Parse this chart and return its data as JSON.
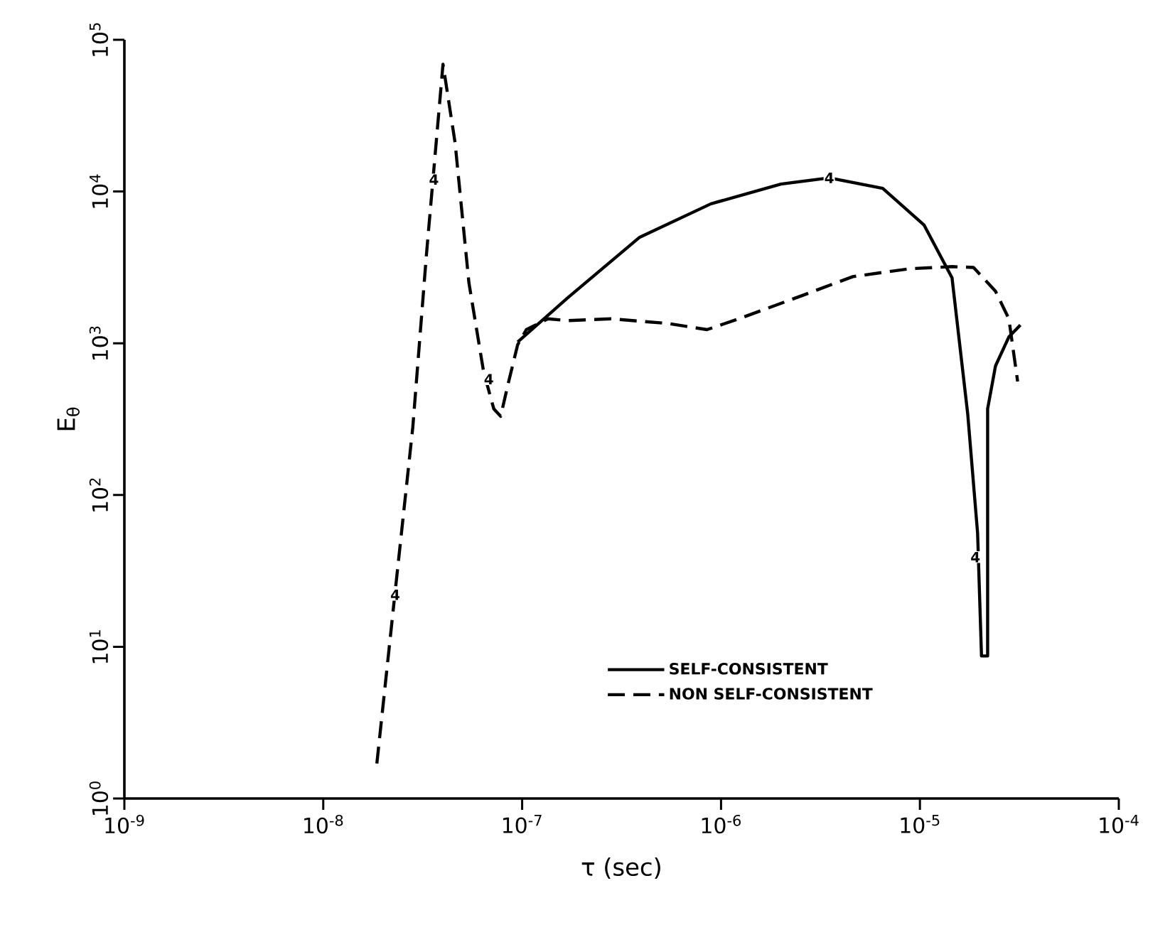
{
  "chart_data": {
    "type": "line",
    "xlabel": "τ (sec)",
    "ylabel": "E$_{θ}$",
    "log": "xy",
    "grid": false,
    "legend": "bottom",
    "marker": "none",
    "xlim": [
      1e-09,
      0.0001
    ],
    "ylim": [
      1,
      100000
    ],
    "xticks": [
      {
        "value": 1e-09,
        "label": "10$^{-9}$"
      },
      {
        "value": 1e-08,
        "label": "10$^{-8}$"
      },
      {
        "value": 1e-07,
        "label": "10$^{-7}$"
      },
      {
        "value": 1e-06,
        "label": "10$^{-6}$"
      },
      {
        "value": 1e-05,
        "label": "10$^{-5}$"
      },
      {
        "value": 0.0001,
        "label": "10$^{-4}$"
      }
    ],
    "yticks": [
      {
        "value": 1,
        "label": "10$^{0}$"
      },
      {
        "value": 10,
        "label": "10$^{1}$"
      },
      {
        "value": 100,
        "label": "10$^{2}$"
      },
      {
        "value": 1000,
        "label": "10$^{3}$"
      },
      {
        "value": 10000,
        "label": "10$^{4}$"
      },
      {
        "value": 100000,
        "label": "10$^{5}$"
      }
    ],
    "series": [
      {
        "name": "SELF-CONSISTENT",
        "color": "#000000",
        "line_style": "solid",
        "x": [
          9.5e-08,
          1.7e-07,
          3.9e-07,
          8.9e-07,
          2e-06,
          3.5e-06,
          6.5e-06,
          1.05e-05,
          1.45e-05,
          1.74e-05,
          1.95e-05,
          2.04e-05,
          2.19e-05,
          2.19e-05,
          2.4e-05,
          2.8e-05,
          3.2e-05
        ],
        "values": [
          1020,
          2000,
          5000,
          8300,
          11200,
          12300,
          10500,
          6000,
          2700,
          340,
          56,
          8.7,
          8.7,
          370,
          710,
          1100,
          1320
        ]
      },
      {
        "name": "NON SELF-CONSISTENT",
        "color": "#000000",
        "line_style": "dashed",
        "x": [
          1.86e-08,
          2.29e-08,
          2.82e-08,
          3.3e-08,
          4e-08,
          4.6e-08,
          5.4e-08,
          6.4e-08,
          7.2e-08,
          7.8e-08,
          8.5e-08,
          9.5e-08,
          1.05e-07,
          1.35e-07,
          1.7e-07,
          2.8e-07,
          5.4e-07,
          8.5e-07,
          1.23e-06,
          2.4e-06,
          4.6e-06,
          8.9e-06,
          1.45e-05,
          1.86e-05,
          2.4e-05,
          2.8e-05,
          3.1e-05
        ],
        "values": [
          1.7,
          22,
          280,
          3800,
          69000,
          21000,
          2500,
          650,
          370,
          330,
          540,
          980,
          1230,
          1450,
          1410,
          1450,
          1350,
          1230,
          1450,
          2000,
          2750,
          3100,
          3200,
          3160,
          2200,
          1450,
          560
        ]
      }
    ],
    "annotations": [
      {
        "text": "4",
        "x": 2.3e-08,
        "y": 22
      },
      {
        "text": "4",
        "x": 3.6e-08,
        "y": 12000
      },
      {
        "text": "4",
        "x": 6.8e-08,
        "y": 580
      },
      {
        "text": "4",
        "x": 3.5e-06,
        "y": 12300
      },
      {
        "text": "4",
        "x": 1.9e-05,
        "y": 39
      }
    ]
  }
}
